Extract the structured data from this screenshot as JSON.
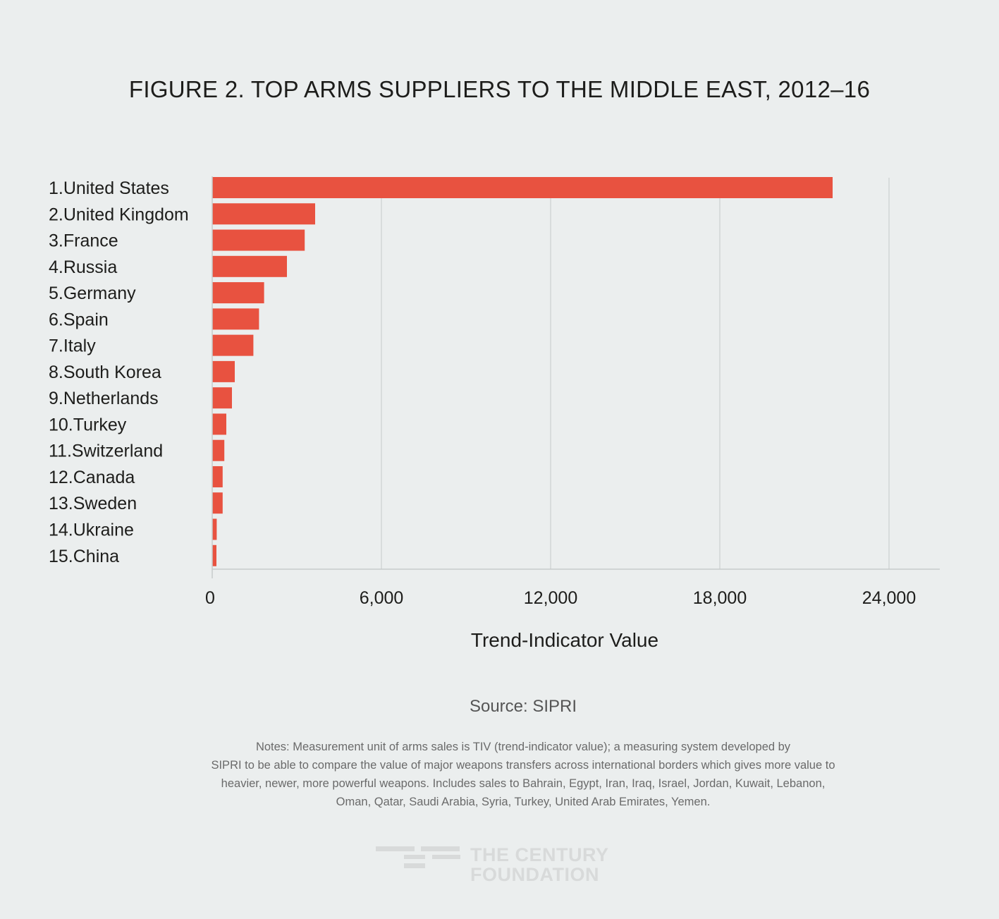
{
  "title": "FIGURE 2. TOP ARMS SUPPLIERS TO THE MIDDLE EAST, 2012–16",
  "chart_data": {
    "type": "bar",
    "orientation": "horizontal",
    "title": "FIGURE 2. TOP ARMS SUPPLIERS TO THE MIDDLE EAST, 2012–16",
    "xlabel": "Trend-Indicator Value",
    "ylabel": "",
    "categories": [
      "1.United States",
      "2.United Kingdom",
      "3.France",
      "4.Russia",
      "5.Germany",
      "6.Spain",
      "7.Italy",
      "8.South Korea",
      "9.Netherlands",
      "10.Turkey",
      "11.Switzerland",
      "12.Canada",
      "13.Sweden",
      "14.Ukraine",
      "15.China"
    ],
    "values": [
      22000,
      3650,
      3280,
      2650,
      1840,
      1660,
      1460,
      800,
      700,
      500,
      430,
      370,
      370,
      160,
      150
    ],
    "xlim": [
      0,
      24000
    ],
    "xticks": [
      0,
      6000,
      12000,
      18000,
      24000
    ],
    "xtick_labels": [
      "0",
      "6,000",
      "12,000",
      "18,000",
      "24,000"
    ],
    "grid": "vertical",
    "bar_color": "#e85240"
  },
  "source": "Source: SIPRI",
  "notes": [
    "Notes: Measurement unit of arms sales is TIV (trend-indicator value); a measuring system developed by",
    "SIPRI to be able to compare the value of major weapons transfers across international borders which gives more value to",
    "heavier, newer, more powerful weapons. Includes sales to Bahrain, Egypt, Iran, Iraq, Israel, Jordan, Kuwait, Lebanon,",
    "Oman, Qatar, Saudi Arabia, Syria, Turkey, United Arab Emirates, Yemen."
  ],
  "logo": {
    "line1": "THE CENTURY",
    "line2": "FOUNDATION",
    "mark": "tcf-logo-icon"
  }
}
